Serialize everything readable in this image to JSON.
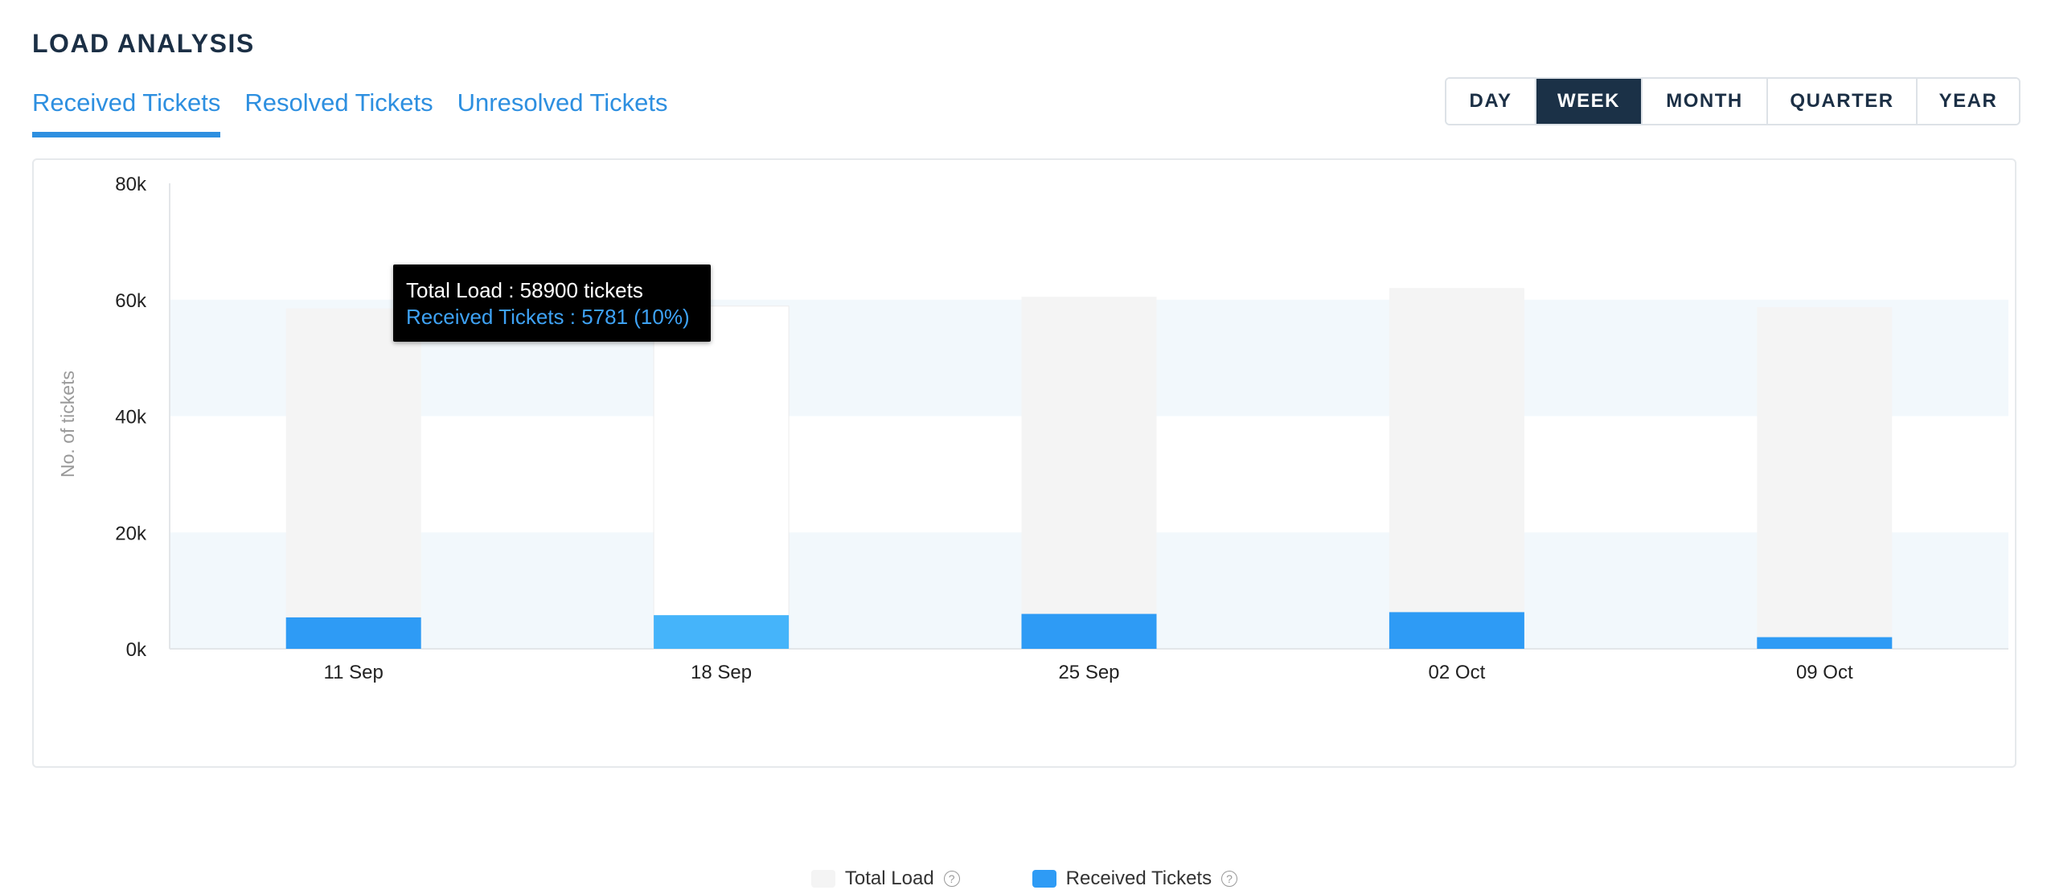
{
  "header": {
    "title": "LOAD ANALYSIS"
  },
  "tabs": [
    {
      "label": "Received Tickets",
      "active": true
    },
    {
      "label": "Resolved Tickets",
      "active": false
    },
    {
      "label": "Unresolved Tickets",
      "active": false
    }
  ],
  "ranges": [
    {
      "label": "DAY",
      "active": false
    },
    {
      "label": "WEEK",
      "active": true
    },
    {
      "label": "MONTH",
      "active": false
    },
    {
      "label": "QUARTER",
      "active": false
    },
    {
      "label": "YEAR",
      "active": false
    }
  ],
  "tooltip": {
    "line1": "Total Load : 58900 tickets",
    "line2": "Received Tickets : 5781 (10%)"
  },
  "legend": {
    "total_load": "Total Load",
    "received": "Received Tickets",
    "help_glyph": "?"
  },
  "colors": {
    "total_load": "#f4f4f4",
    "received": "#2e9bf5",
    "received_highlight": "#45b4fa",
    "band": "#f2f8fc",
    "accent": "#2d8fe0",
    "active_range_bg": "#1b3147"
  },
  "chart_data": {
    "type": "bar",
    "ylabel": "No. of tickets",
    "ylim": [
      0,
      80000
    ],
    "yticks": [
      0,
      20000,
      40000,
      60000,
      80000
    ],
    "ytick_labels": [
      "0k",
      "20k",
      "40k",
      "60k",
      "80k"
    ],
    "categories": [
      "11 Sep",
      "18 Sep",
      "25 Sep",
      "02 Oct",
      "09 Oct"
    ],
    "highlighted_index": 1,
    "series": [
      {
        "name": "Total Load",
        "values": [
          58500,
          58900,
          60500,
          62000,
          58700
        ]
      },
      {
        "name": "Received Tickets",
        "values": [
          5400,
          5781,
          6000,
          6300,
          2000
        ]
      }
    ],
    "legend_position": "bottom"
  }
}
